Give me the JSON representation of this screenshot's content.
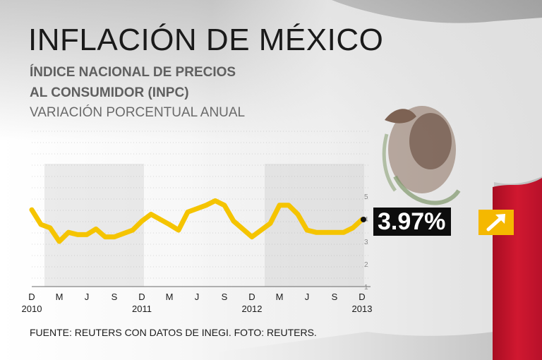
{
  "header": {
    "title": "INFLACIÓN DE MÉXICO",
    "subtitle_line1": "ÍNDICE NACIONAL DE PRECIOS",
    "subtitle_line2": "AL CONSUMIDOR (INPC)",
    "subtitle_line3": "VARIACIÓN PORCENTUAL ANUAL"
  },
  "callout": {
    "value_label": "3.97%",
    "trend_icon": "arrow-up-right-icon",
    "color": "#f5b800"
  },
  "footer": {
    "source": "FUENTE: REUTERS CON DATOS DE INEGI. FOTO: REUTERS."
  },
  "colors": {
    "line": "#f5c400",
    "flag_red": "#c8102e",
    "flag_white": "#f0f0f0"
  },
  "chart_data": {
    "type": "line",
    "title": "INFLACIÓN DE MÉXICO",
    "ylim": [
      1,
      6
    ],
    "y_ticks": [
      1,
      2,
      3,
      4,
      5
    ],
    "grid": true,
    "x_tick_labels": [
      {
        "label": "D",
        "idx": 0
      },
      {
        "label": "M",
        "idx": 3
      },
      {
        "label": "J",
        "idx": 6
      },
      {
        "label": "S",
        "idx": 9
      },
      {
        "label": "D",
        "idx": 12
      },
      {
        "label": "M",
        "idx": 15
      },
      {
        "label": "J",
        "idx": 18
      },
      {
        "label": "S",
        "idx": 21
      },
      {
        "label": "D",
        "idx": 24
      },
      {
        "label": "M",
        "idx": 27
      },
      {
        "label": "J",
        "idx": 30
      },
      {
        "label": "S",
        "idx": 33
      },
      {
        "label": "D",
        "idx": 36
      }
    ],
    "year_labels": [
      {
        "label": "2010",
        "idx": 0
      },
      {
        "label": "2011",
        "idx": 12
      },
      {
        "label": "2012",
        "idx": 24
      },
      {
        "label": "2013",
        "idx": 36
      }
    ],
    "shaded_year_bands": [
      [
        1,
        12
      ],
      [
        25,
        36
      ]
    ],
    "series": [
      {
        "values": [
          4.4,
          3.75,
          3.6,
          3.0,
          3.4,
          3.3,
          3.3,
          3.55,
          3.2,
          3.2,
          3.5,
          3.9,
          4.2,
          3.75,
          3.5,
          4.3,
          4.45,
          4.6,
          4.8,
          4.6,
          3.9,
          3.2,
          3.8,
          4.6,
          4.6,
          4.2,
          3.5,
          3.4,
          3.4,
          3.4,
          3.6,
          3.97
        ],
        "x_idx": [
          0,
          1,
          2,
          3,
          4,
          5,
          6,
          7,
          8,
          9,
          11,
          12,
          13,
          15,
          16,
          17,
          18,
          19,
          20,
          21,
          22,
          24,
          26,
          27,
          28,
          29,
          30,
          31,
          32,
          34,
          35,
          36
        ]
      }
    ],
    "last_value_label": "3.97%"
  }
}
